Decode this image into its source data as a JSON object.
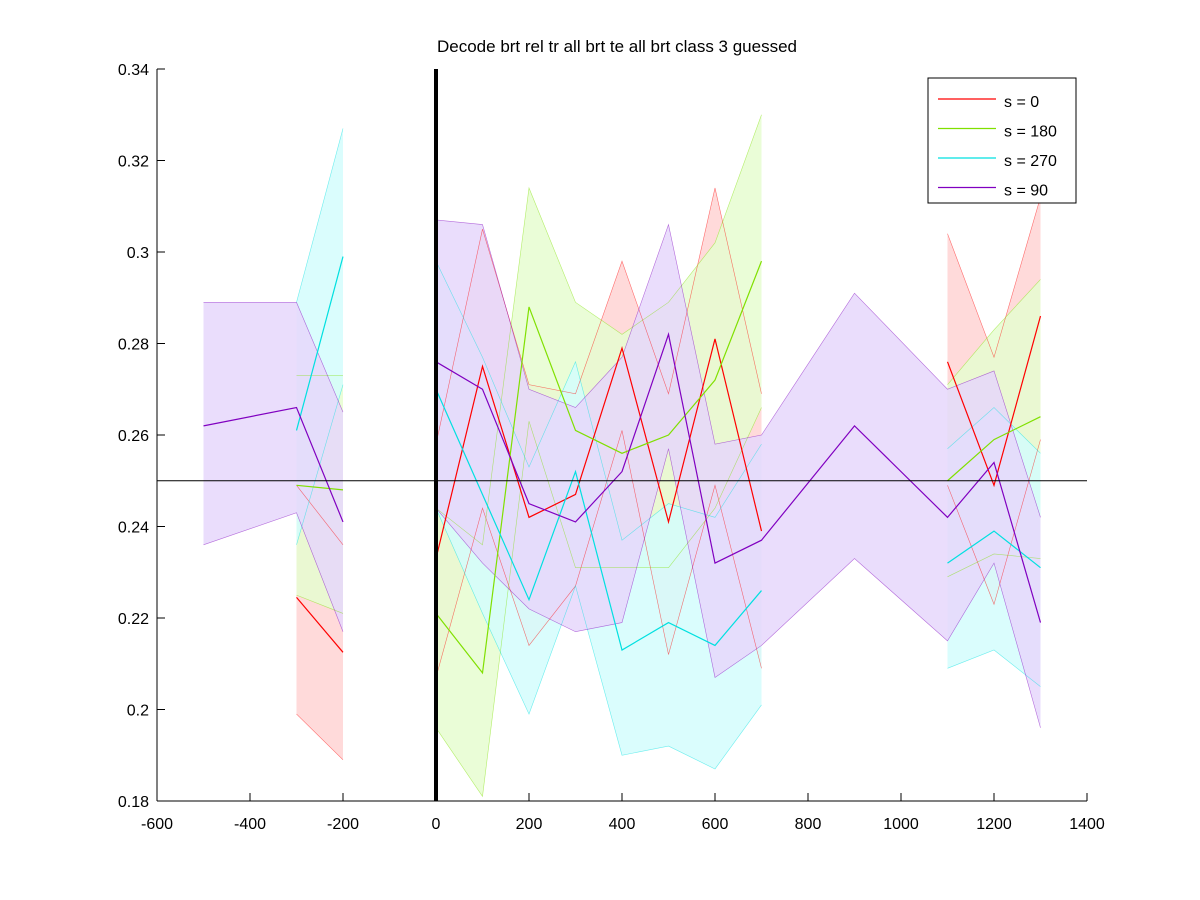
{
  "chart_data": {
    "type": "line",
    "title": "Decode brt rel tr all brt te all brt class 3 guessed",
    "xlabel": "",
    "ylabel": "",
    "xlim": [
      -600,
      1400
    ],
    "ylim": [
      0.18,
      0.34
    ],
    "xticks": [
      -600,
      -400,
      -200,
      0,
      200,
      400,
      600,
      800,
      1000,
      1200,
      1400
    ],
    "xtick_labels": [
      "-600",
      "-400",
      "-200",
      "0",
      "200",
      "400",
      "600",
      "800",
      "1000",
      "1200",
      "1400"
    ],
    "yticks": [
      0.18,
      0.2,
      0.22,
      0.24,
      0.26,
      0.28,
      0.3,
      0.32,
      0.34
    ],
    "ytick_labels": [
      "0.18",
      "0.2",
      "0.22",
      "0.24",
      "0.26",
      "0.28",
      "0.3",
      "0.32",
      "0.34"
    ],
    "reference_lines": {
      "vertical_x": 0,
      "horizontal_y": 0.25
    },
    "legend_position": "top-right",
    "series": [
      {
        "name": "s = 0",
        "color": "#ff0000",
        "fill": "#ffd3d3",
        "segments": [
          {
            "x": [
              -300,
              -200
            ],
            "mean": [
              0.2245,
              0.2125
            ],
            "upper": [
              0.249,
              0.236
            ],
            "lower": [
              0.199,
              0.189
            ]
          },
          {
            "x": [
              0,
              100,
              200,
              300,
              400,
              500,
              600,
              700
            ],
            "mean": [
              0.233,
              0.275,
              0.242,
              0.247,
              0.279,
              0.241,
              0.281,
              0.239
            ],
            "upper": [
              0.258,
              0.305,
              0.271,
              0.269,
              0.298,
              0.269,
              0.314,
              0.269
            ],
            "lower": [
              0.207,
              0.244,
              0.214,
              0.227,
              0.261,
              0.212,
              0.249,
              0.209
            ]
          },
          {
            "x": [
              1100,
              1200,
              1300
            ],
            "mean": [
              0.276,
              0.249,
              0.286
            ],
            "upper": [
              0.304,
              0.277,
              0.312
            ],
            "lower": [
              0.249,
              0.223,
              0.259
            ]
          }
        ]
      },
      {
        "name": "s = 180",
        "color": "#80e000",
        "fill": "#e6fdd0",
        "segments": [
          {
            "x": [
              -300,
              -200
            ],
            "mean": [
              0.249,
              0.248
            ],
            "upper": [
              0.273,
              0.273
            ],
            "lower": [
              0.225,
              0.221
            ]
          },
          {
            "x": [
              0,
              100,
              200,
              300,
              400,
              500,
              600,
              700
            ],
            "mean": [
              0.221,
              0.208,
              0.288,
              0.261,
              0.256,
              0.26,
              0.272,
              0.298
            ],
            "upper": [
              0.244,
              0.236,
              0.314,
              0.289,
              0.282,
              0.289,
              0.302,
              0.33
            ],
            "lower": [
              0.196,
              0.181,
              0.263,
              0.231,
              0.231,
              0.231,
              0.244,
              0.266
            ]
          },
          {
            "x": [
              1100,
              1200,
              1300
            ],
            "mean": [
              0.25,
              0.259,
              0.264
            ],
            "upper": [
              0.271,
              0.283,
              0.294
            ],
            "lower": [
              0.229,
              0.234,
              0.233
            ]
          }
        ]
      },
      {
        "name": "s = 270",
        "color": "#00e0e0",
        "fill": "#d4fdfd",
        "segments": [
          {
            "x": [
              -300,
              -200
            ],
            "mean": [
              0.261,
              0.299
            ],
            "upper": [
              0.289,
              0.327
            ],
            "lower": [
              0.236,
              0.271
            ]
          },
          {
            "x": [
              0,
              100,
              200,
              300,
              400,
              500,
              600,
              700
            ],
            "mean": [
              0.27,
              0.247,
              0.224,
              0.252,
              0.213,
              0.219,
              0.214,
              0.226
            ],
            "upper": [
              0.298,
              0.277,
              0.253,
              0.276,
              0.237,
              0.245,
              0.242,
              0.258
            ],
            "lower": [
              0.244,
              0.221,
              0.199,
              0.227,
              0.19,
              0.192,
              0.187,
              0.201
            ]
          },
          {
            "x": [
              1100,
              1200,
              1300
            ],
            "mean": [
              0.232,
              0.239,
              0.231
            ],
            "upper": [
              0.257,
              0.266,
              0.256
            ],
            "lower": [
              0.209,
              0.213,
              0.205
            ]
          }
        ]
      },
      {
        "name": "s = 90",
        "color": "#8000c0",
        "fill": "#e6d7fb",
        "segments": [
          {
            "x": [
              -500,
              -300,
              -200
            ],
            "mean": [
              0.262,
              0.266,
              0.241
            ],
            "upper": [
              0.289,
              0.289,
              0.265
            ],
            "lower": [
              0.236,
              0.243,
              0.217
            ]
          },
          {
            "x": [
              0,
              100,
              200,
              300,
              400,
              500,
              600,
              700,
              900,
              1100,
              1200,
              1300
            ],
            "mean": [
              0.276,
              0.27,
              0.245,
              0.241,
              0.252,
              0.282,
              0.232,
              0.237,
              0.262,
              0.242,
              0.254,
              0.219
            ],
            "upper": [
              0.307,
              0.306,
              0.27,
              0.266,
              0.277,
              0.306,
              0.258,
              0.26,
              0.291,
              0.27,
              0.274,
              0.242
            ],
            "lower": [
              0.244,
              0.232,
              0.222,
              0.217,
              0.219,
              0.257,
              0.207,
              0.214,
              0.233,
              0.215,
              0.232,
              0.196
            ]
          }
        ]
      }
    ]
  }
}
